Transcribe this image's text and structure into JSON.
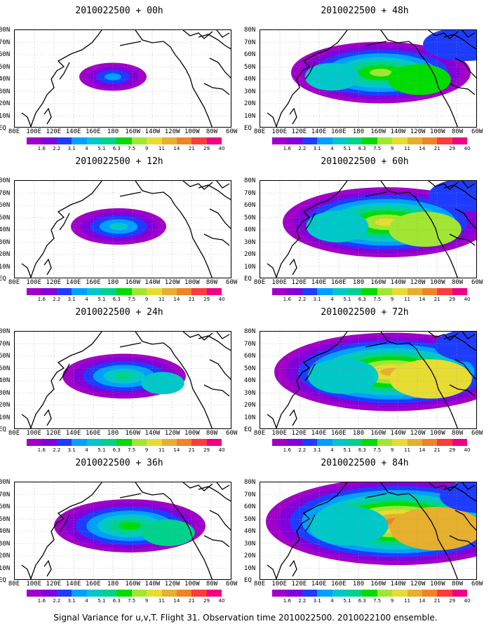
{
  "colorbar": {
    "labels": [
      "1.6",
      "2.2",
      "3.1",
      "4",
      "5.1",
      "6.3",
      "7.5",
      "9",
      "11",
      "14",
      "21",
      "29",
      "40"
    ],
    "colors": [
      "#a000c8",
      "#8200dc",
      "#1e3cff",
      "#00a0ff",
      "#00c8c8",
      "#00d28c",
      "#00dc00",
      "#a0e632",
      "#e6dc32",
      "#e6af2d",
      "#f08228",
      "#fa3c3c",
      "#f00082"
    ]
  },
  "y_labels": [
    "80N",
    "70N",
    "60N",
    "50N",
    "40N",
    "30N",
    "20N",
    "10N",
    "EQ"
  ],
  "x_labels": [
    "80E",
    "100E",
    "120E",
    "140E",
    "160E",
    "180",
    "160W",
    "140W",
    "120W",
    "100W",
    "80W",
    "60W"
  ],
  "panels": [
    {
      "title": "2010022500 + 00h",
      "level": 1
    },
    {
      "title": "2010022500 + 12h",
      "level": 2
    },
    {
      "title": "2010022500 + 24h",
      "level": 3
    },
    {
      "title": "2010022500 + 36h",
      "level": 4
    },
    {
      "title": "2010022500 + 48h",
      "level": 5
    },
    {
      "title": "2010022500 + 60h",
      "level": 6
    },
    {
      "title": "2010022500 + 72h",
      "level": 7
    },
    {
      "title": "2010022500 + 84h",
      "level": 8
    }
  ],
  "caption": "Signal Variance for u,v,T. Flight 31. Observation time 2010022500. 2010022100 ensemble."
}
